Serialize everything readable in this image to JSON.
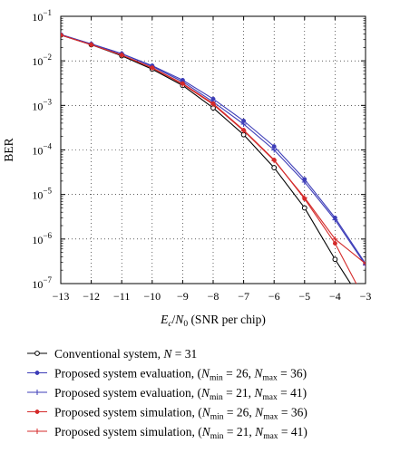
{
  "chart_data": {
    "type": "line",
    "xlabel_main": "E",
    "xlabel_sub": "c",
    "xlabel_mid": "/N",
    "xlabel_sub2": "0",
    "xlabel_rest": " (SNR per chip)",
    "ylabel": "BER",
    "xlim": [
      -13,
      -3
    ],
    "ylim_exp": [
      -7,
      -1
    ],
    "y_scale": "log",
    "grid": true,
    "legend_position": "below",
    "x_ticks": [
      "−13",
      "−12",
      "−11",
      "−10",
      "−9",
      "−8",
      "−7",
      "−6",
      "−5",
      "−4",
      "−3"
    ],
    "y_ticks": [
      {
        "base": "10",
        "exp": "−7"
      },
      {
        "base": "10",
        "exp": "−6"
      },
      {
        "base": "10",
        "exp": "−5"
      },
      {
        "base": "10",
        "exp": "−4"
      },
      {
        "base": "10",
        "exp": "−3"
      },
      {
        "base": "10",
        "exp": "−2"
      },
      {
        "base": "10",
        "exp": "−1"
      }
    ],
    "x": [
      -13,
      -12,
      -11,
      -10,
      -9,
      -8,
      -7,
      -6,
      -5,
      -4,
      -3
    ],
    "series": [
      {
        "legend": [
          {
            "t": "Conventional system, "
          },
          {
            "t": "N",
            "i": true
          },
          {
            "t": " = 31"
          }
        ],
        "color": "#000000",
        "marker": "circle",
        "values": [
          0.038,
          0.023,
          0.013,
          0.0065,
          0.0028,
          0.00088,
          0.00022,
          4e-05,
          5e-06,
          3.5e-07,
          3e-08
        ]
      },
      {
        "legend": [
          {
            "t": "Proposed system evaluation, ("
          },
          {
            "t": "N",
            "i": true
          },
          {
            "t": "min",
            "sub": true
          },
          {
            "t": " = 26, "
          },
          {
            "t": "N",
            "i": true
          },
          {
            "t": "max",
            "sub": true
          },
          {
            "t": " = 36)"
          }
        ],
        "color": "#3d3db8",
        "marker": "dot",
        "values": [
          0.039,
          0.024,
          0.0145,
          0.0078,
          0.0037,
          0.0014,
          0.00045,
          0.00012,
          2.2e-05,
          3e-06,
          2.8e-07
        ]
      },
      {
        "legend": [
          {
            "t": "Proposed system evaluation, ("
          },
          {
            "t": "N",
            "i": true
          },
          {
            "t": "min",
            "sub": true
          },
          {
            "t": " = 21, "
          },
          {
            "t": "N",
            "i": true
          },
          {
            "t": "max",
            "sub": true
          },
          {
            "t": " = 41)"
          }
        ],
        "color": "#3d3db8",
        "marker": "plus",
        "values": [
          0.039,
          0.024,
          0.0145,
          0.0075,
          0.0034,
          0.0012,
          0.00038,
          0.0001,
          1.9e-05,
          2.7e-06,
          2.6e-07
        ]
      },
      {
        "legend": [
          {
            "t": "Proposed system simulation, ("
          },
          {
            "t": "N",
            "i": true
          },
          {
            "t": "min",
            "sub": true
          },
          {
            "t": " = 26, "
          },
          {
            "t": "N",
            "i": true
          },
          {
            "t": "max",
            "sub": true
          },
          {
            "t": " = 36)"
          }
        ],
        "color": "#d42a2a",
        "marker": "dot",
        "values": [
          0.038,
          0.023,
          0.0135,
          0.007,
          0.0031,
          0.0011,
          0.00028,
          6e-05,
          8e-06,
          8e-07,
          4e-08
        ]
      },
      {
        "legend": [
          {
            "t": "Proposed system simulation, ("
          },
          {
            "t": "N",
            "i": true
          },
          {
            "t": "min",
            "sub": true
          },
          {
            "t": " = 21, "
          },
          {
            "t": "N",
            "i": true
          },
          {
            "t": "max",
            "sub": true
          },
          {
            "t": " = 41)"
          }
        ],
        "color": "#d42a2a",
        "marker": "plus",
        "values": [
          0.038,
          0.023,
          0.0135,
          0.0069,
          0.003,
          0.00105,
          0.00027,
          5.8e-05,
          8.5e-06,
          1e-06,
          2.8e-07
        ]
      }
    ]
  }
}
